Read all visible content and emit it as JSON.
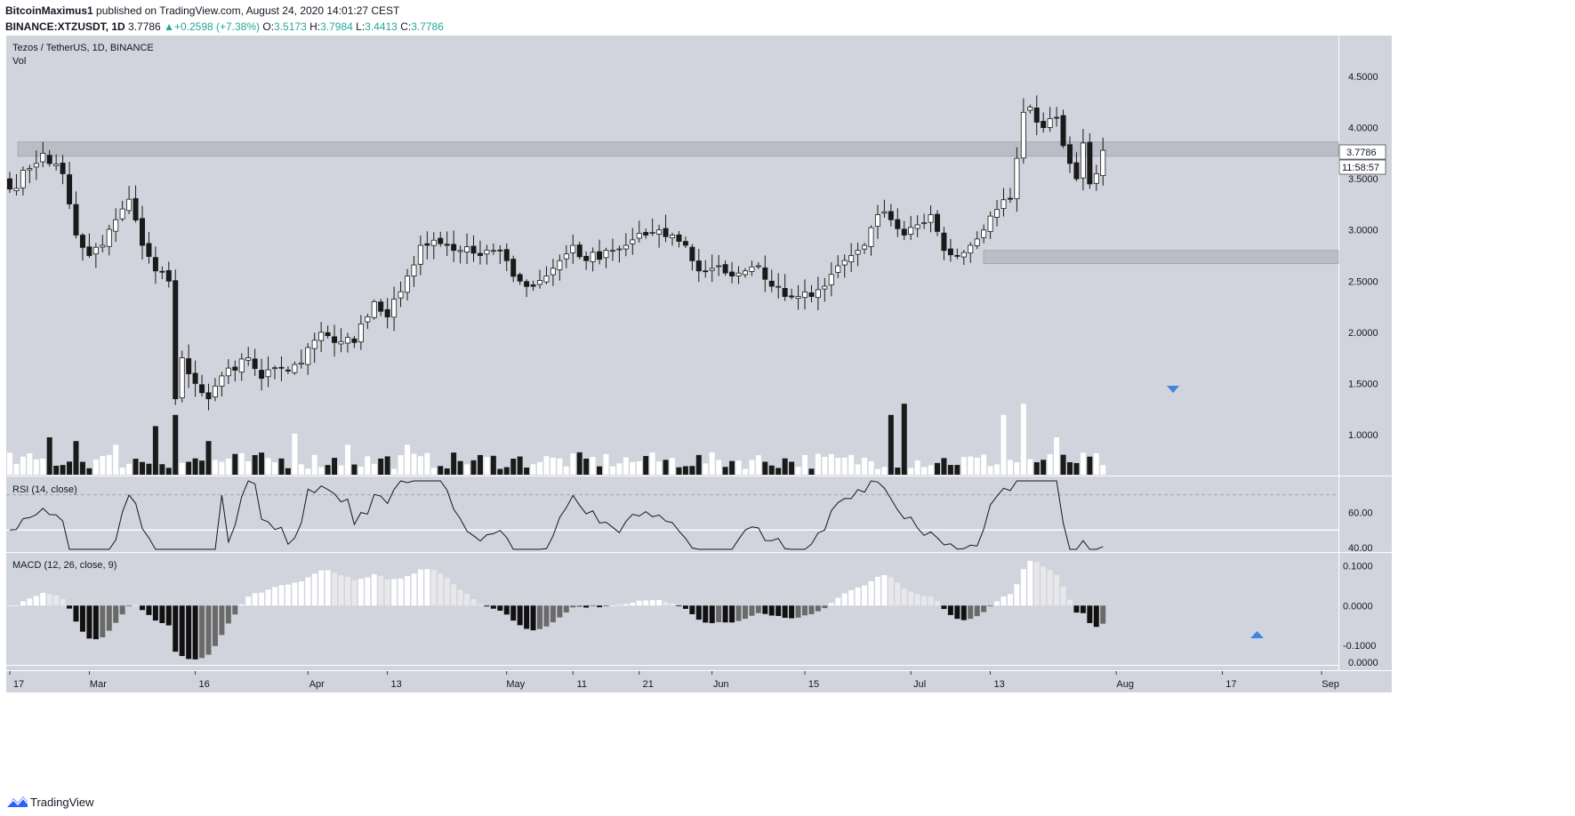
{
  "header": {
    "author": "BitcoinMaximus1",
    "published": "published on TradingView.com, August 24, 2020 14:01:27 CEST",
    "symbol": "BINANCE:XTZUSDT, 1D",
    "last": "3.7786",
    "change": "+0.2598 (+7.38%)",
    "o_label": "O:",
    "o": "3.5173",
    "h_label": "H:",
    "h": "3.7984",
    "l_label": "L:",
    "l": "3.4413",
    "c_label": "C:",
    "c": "3.7786"
  },
  "panes": {
    "main_title": "Tezos / TetherUS, 1D, BINANCE",
    "vol_label": "Vol",
    "rsi_label": "RSI (14, close)",
    "macd_label": "MACD (12, 26, close, 9)"
  },
  "price_badge": "3.7786",
  "countdown_badge": "11:58:57",
  "footer": {
    "brand": "TradingView",
    "logo_icon": "tradingview-logo-icon"
  },
  "colors": {
    "background": "#d1d4dc",
    "candle_up": "#ffffff",
    "candle_down": "#1a1a1a",
    "wick": "#1a1a1a",
    "zone": "#b2b5be",
    "marker": "#3d85e0"
  },
  "chart_data": [
    {
      "type": "candlestick",
      "title": "Tezos / TetherUS, 1D, BINANCE",
      "ylim": [
        0.6,
        4.9
      ],
      "yticks": [
        1.0,
        1.5,
        2.0,
        2.5,
        3.0,
        3.5,
        4.0,
        4.5
      ],
      "yticklabels": [
        "1.0000",
        "1.5000",
        "2.0000",
        "2.5000",
        "3.0000",
        "3.5000",
        "4.0000",
        "4.5000"
      ],
      "xticks": [
        {
          "label": "17",
          "day": 0
        },
        {
          "label": "Mar",
          "day": 12
        },
        {
          "label": "16",
          "day": 28
        },
        {
          "label": "Apr",
          "day": 45
        },
        {
          "label": "13",
          "day": 57
        },
        {
          "label": "May",
          "day": 75
        },
        {
          "label": "11",
          "day": 85
        },
        {
          "label": "21",
          "day": 95
        },
        {
          "label": "Jun",
          "day": 106
        },
        {
          "label": "15",
          "day": 120
        },
        {
          "label": "Jul",
          "day": 136
        },
        {
          "label": "13",
          "day": 148
        },
        {
          "label": "Aug",
          "day": 167
        },
        {
          "label": "17",
          "day": 183
        },
        {
          "label": "Sep",
          "day": 198
        }
      ],
      "zones": [
        {
          "from": 3.72,
          "to": 3.86
        },
        {
          "from": 2.67,
          "to": 2.8
        }
      ],
      "anchors_close": [
        [
          0,
          3.4
        ],
        [
          3,
          3.6
        ],
        [
          5,
          3.75
        ],
        [
          8,
          3.55
        ],
        [
          10,
          2.95
        ],
        [
          12,
          2.75
        ],
        [
          14,
          2.85
        ],
        [
          16,
          3.1
        ],
        [
          18,
          3.3
        ],
        [
          20,
          2.85
        ],
        [
          22,
          2.6
        ],
        [
          24,
          2.5
        ],
        [
          25,
          1.35
        ],
        [
          26,
          1.75
        ],
        [
          28,
          1.5
        ],
        [
          30,
          1.35
        ],
        [
          33,
          1.65
        ],
        [
          36,
          1.75
        ],
        [
          38,
          1.55
        ],
        [
          41,
          1.65
        ],
        [
          44,
          1.7
        ],
        [
          47,
          2.0
        ],
        [
          49,
          1.9
        ],
        [
          52,
          1.9
        ],
        [
          55,
          2.3
        ],
        [
          57,
          2.15
        ],
        [
          60,
          2.55
        ],
        [
          62,
          2.85
        ],
        [
          64,
          2.9
        ],
        [
          66,
          2.85
        ],
        [
          68,
          2.8
        ],
        [
          71,
          2.75
        ],
        [
          73,
          2.8
        ],
        [
          75,
          2.7
        ],
        [
          77,
          2.5
        ],
        [
          79,
          2.45
        ],
        [
          81,
          2.55
        ],
        [
          83,
          2.7
        ],
        [
          85,
          2.85
        ],
        [
          87,
          2.7
        ],
        [
          90,
          2.8
        ],
        [
          93,
          2.85
        ],
        [
          96,
          2.95
        ],
        [
          98,
          3.0
        ],
        [
          100,
          2.95
        ],
        [
          102,
          2.85
        ],
        [
          104,
          2.6
        ],
        [
          107,
          2.65
        ],
        [
          109,
          2.55
        ],
        [
          111,
          2.6
        ],
        [
          113,
          2.65
        ],
        [
          115,
          2.45
        ],
        [
          117,
          2.35
        ],
        [
          119,
          2.35
        ],
        [
          121,
          2.35
        ],
        [
          123,
          2.45
        ],
        [
          125,
          2.65
        ],
        [
          127,
          2.75
        ],
        [
          129,
          2.85
        ],
        [
          131,
          3.15
        ],
        [
          133,
          3.1
        ],
        [
          135,
          2.95
        ],
        [
          137,
          3.05
        ],
        [
          139,
          3.15
        ],
        [
          141,
          2.8
        ],
        [
          143,
          2.75
        ],
        [
          145,
          2.85
        ],
        [
          147,
          3.0
        ],
        [
          149,
          3.2
        ],
        [
          151,
          3.3
        ],
        [
          152,
          3.7
        ],
        [
          153,
          4.15
        ],
        [
          154,
          4.2
        ],
        [
          156,
          4.0
        ],
        [
          158,
          4.1
        ],
        [
          160,
          3.65
        ],
        [
          161,
          3.5
        ],
        [
          162,
          3.85
        ],
        [
          163,
          3.45
        ],
        [
          164,
          3.55
        ],
        [
          165,
          3.78
        ]
      ],
      "last_close": 3.7786,
      "x_scale": "day index from Feb 17, 2020"
    },
    {
      "type": "bar",
      "title": "Vol",
      "note": "volume histogram, relative units",
      "spikes": [
        {
          "day": 6,
          "value": 1.0
        },
        {
          "day": 10,
          "value": 0.9
        },
        {
          "day": 16,
          "value": 0.8
        },
        {
          "day": 22,
          "value": 1.3
        },
        {
          "day": 25,
          "value": 1.6
        },
        {
          "day": 30,
          "value": 0.9
        },
        {
          "day": 43,
          "value": 1.1
        },
        {
          "day": 51,
          "value": 0.8
        },
        {
          "day": 60,
          "value": 0.8
        },
        {
          "day": 96,
          "value": 0.5
        },
        {
          "day": 133,
          "value": 1.6
        },
        {
          "day": 135,
          "value": 1.9
        },
        {
          "day": 150,
          "value": 1.6
        },
        {
          "day": 153,
          "value": 1.9
        },
        {
          "day": 158,
          "value": 1.0
        }
      ]
    },
    {
      "type": "line",
      "title": "RSI (14, close)",
      "ylim": [
        38,
        80
      ],
      "yticks": [
        40,
        60
      ],
      "yticklabels": [
        "40.00",
        "60.00"
      ],
      "reference_line": 70,
      "reference_line_solid": 50
    },
    {
      "type": "bar",
      "title": "MACD (12, 26, close, 9)",
      "ylim": [
        -0.16,
        0.13
      ],
      "yticks": [
        0.1,
        0.0,
        -0.1
      ],
      "yticklabels": [
        "0.1000",
        "0.0000",
        "-0.1000"
      ],
      "extra_label": "0.0000"
    }
  ]
}
